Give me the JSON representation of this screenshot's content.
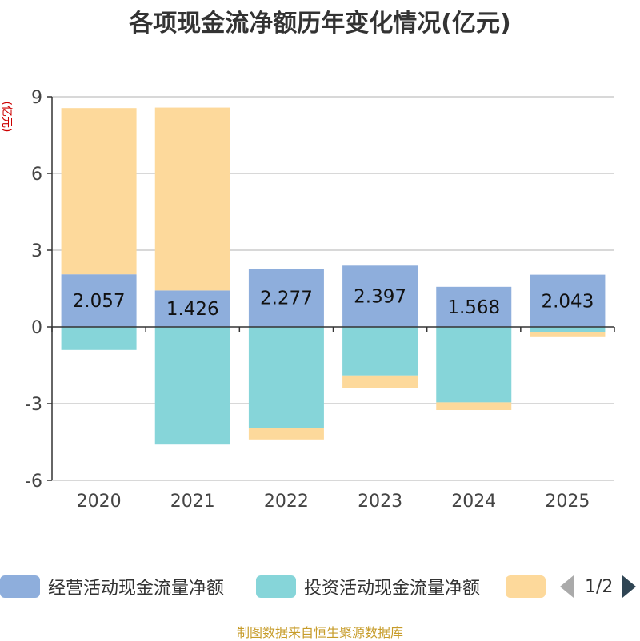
{
  "chart_data": {
    "type": "bar",
    "stacked": true,
    "title": "各项现金流净额历年变化情况(亿元)",
    "ylabel": "(亿元)",
    "xlabel": "",
    "categories": [
      "2020",
      "2021",
      "2022",
      "2023",
      "2024",
      "2025"
    ],
    "ylim": [
      -6,
      9
    ],
    "yticks": [
      -6,
      -3,
      0,
      3,
      6,
      9
    ],
    "grid": true,
    "series": [
      {
        "name": "经营活动现金流量净额",
        "color": "#8eaedc",
        "values": [
          2.057,
          1.426,
          2.277,
          2.397,
          1.568,
          2.043
        ],
        "labels": [
          "2.057",
          "1.426",
          "2.277",
          "2.397",
          "1.568",
          "2.043"
        ]
      },
      {
        "name": "投资活动现金流量净额",
        "color": "#86d5d9",
        "values": [
          -0.9,
          -4.6,
          -3.95,
          -1.9,
          -2.95,
          -0.2
        ]
      },
      {
        "name": "",
        "color": "#fdd99b",
        "values": [
          6.5,
          7.15,
          -0.45,
          -0.5,
          -0.3,
          -0.2
        ]
      }
    ],
    "legend": {
      "position": "bottom",
      "page": "1/2"
    }
  },
  "source_note": "制图数据来自恒生聚源数据库"
}
